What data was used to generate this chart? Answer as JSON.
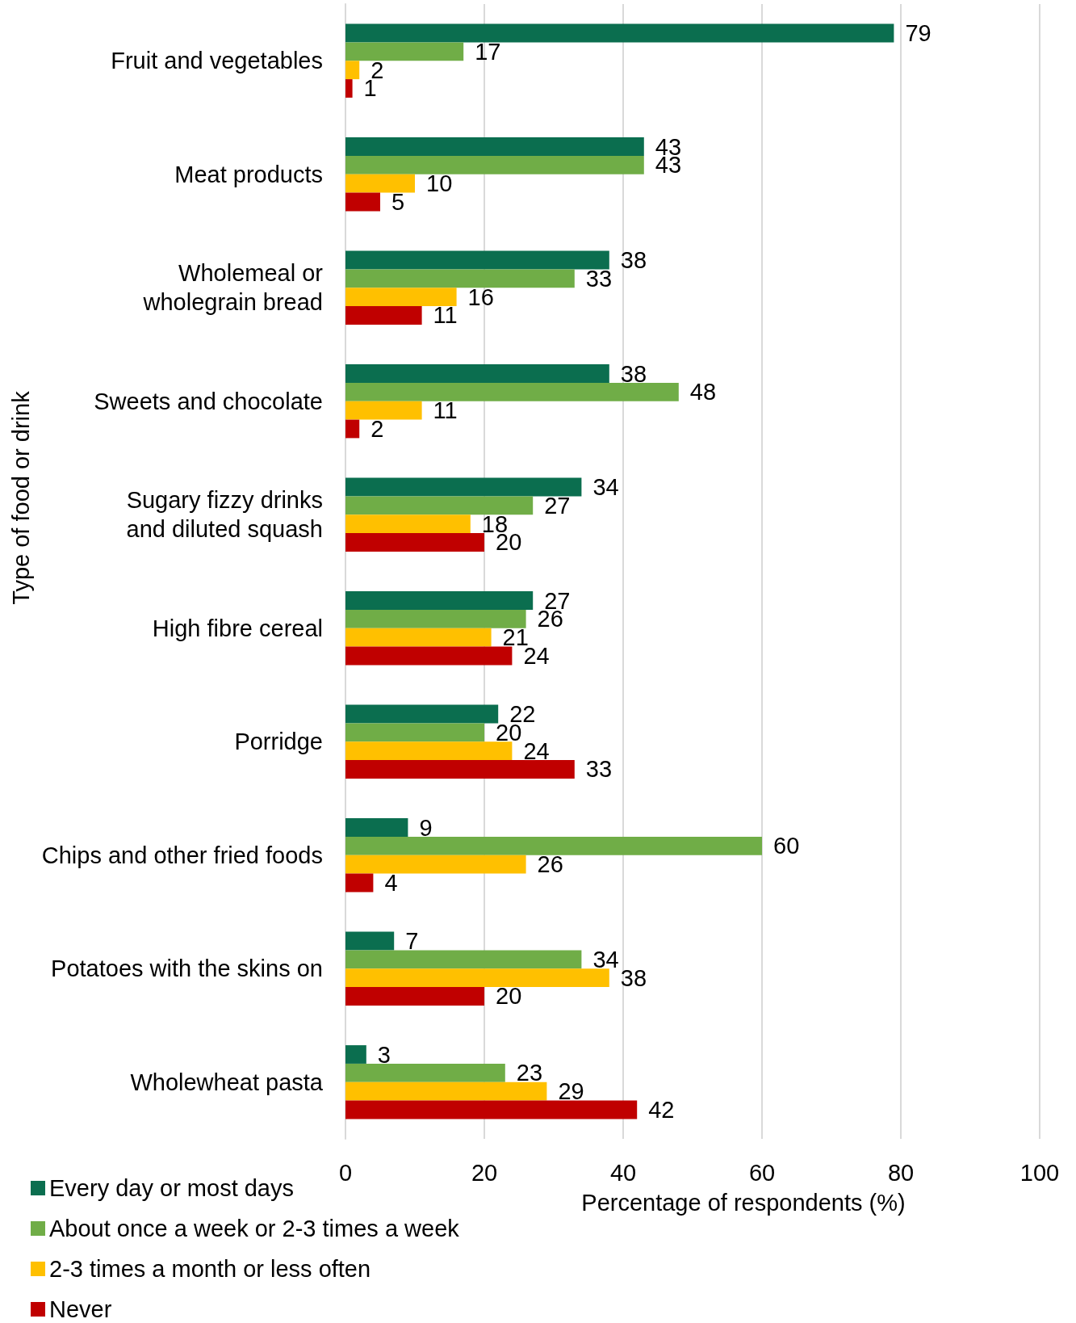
{
  "chart_data": {
    "type": "bar",
    "orientation": "horizontal",
    "xlabel": "Percentage of respondents (%)",
    "ylabel": "Type of food or drink",
    "categories": [
      "Fruit and vegetables",
      "Meat products",
      "Wholemeal or wholegrain bread",
      "Sweets and chocolate",
      "Sugary fizzy drinks and diluted squash",
      "High fibre cereal",
      "Porridge",
      "Chips and other fried foods",
      "Potatoes with the skins on",
      "Wholewheat pasta"
    ],
    "series": [
      {
        "name": "Every day or most days",
        "color": "#0b6e4f",
        "values": [
          79,
          43,
          38,
          38,
          34,
          27,
          22,
          9,
          7,
          3
        ]
      },
      {
        "name": "About once a week or 2-3 times a week",
        "color": "#70ad47",
        "values": [
          17,
          43,
          33,
          48,
          27,
          26,
          20,
          60,
          34,
          23
        ]
      },
      {
        "name": "2-3 times a month or less often",
        "color": "#ffc000",
        "values": [
          2,
          10,
          16,
          11,
          18,
          21,
          24,
          26,
          38,
          29
        ]
      },
      {
        "name": "Never",
        "color": "#c00000",
        "values": [
          1,
          5,
          11,
          2,
          20,
          24,
          33,
          4,
          20,
          42
        ]
      }
    ],
    "xlim": [
      0,
      100
    ],
    "xticks": [
      0,
      20,
      40,
      60,
      80,
      100
    ],
    "grid": "x",
    "legend": "bottom left",
    "data_labels": true
  }
}
